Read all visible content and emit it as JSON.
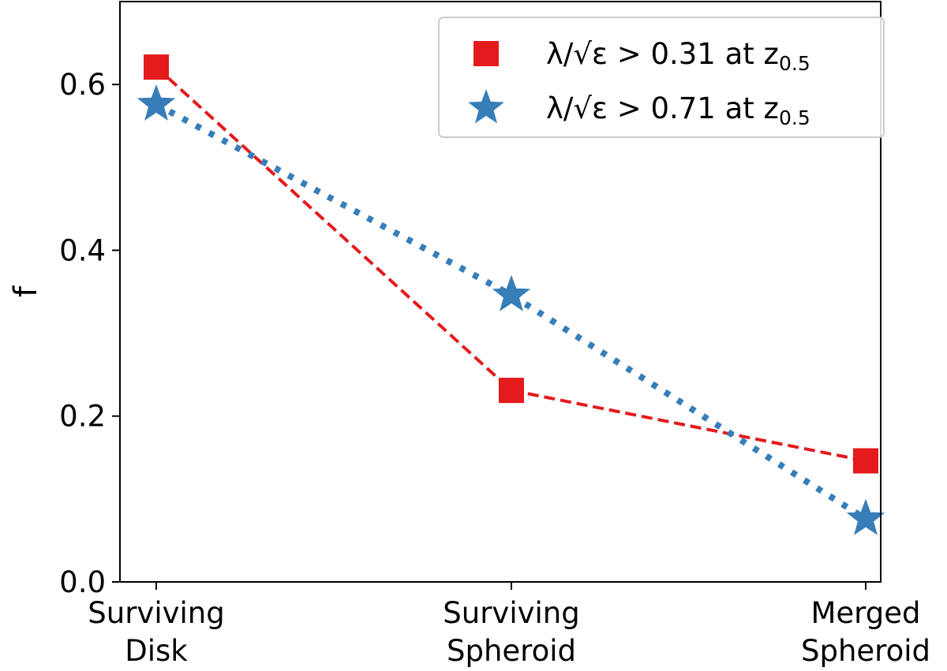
{
  "chart_data": {
    "type": "line",
    "title": "",
    "xlabel": "",
    "ylabel": "f",
    "ylim": [
      0.0,
      0.7
    ],
    "yticks": [
      0.0,
      0.2,
      0.4,
      0.6
    ],
    "ytick_labels": [
      "0.0",
      "0.2",
      "0.4",
      "0.6"
    ],
    "categories": [
      {
        "line1": "Surviving",
        "line2": "Disk"
      },
      {
        "line1": "Surviving",
        "line2": "Spheroid"
      },
      {
        "line1": "Merged",
        "line2": "Spheroid"
      }
    ],
    "series": [
      {
        "name": "λ/√ε > 0.31 at z0.5",
        "legend_main": "λ/√ε > 0.31 at z",
        "legend_sub": "0.5",
        "color": "#e41a1c",
        "marker": "square",
        "linestyle": "dashed",
        "values": [
          0.621,
          0.231,
          0.146
        ]
      },
      {
        "name": "λ/√ε > 0.71 at z0.5",
        "legend_main": "λ/√ε > 0.71 at z",
        "legend_sub": "0.5",
        "color": "#377eb8",
        "marker": "star",
        "linestyle": "dotted",
        "values": [
          0.576,
          0.346,
          0.076
        ]
      }
    ],
    "legend_position": "top-right",
    "grid": false
  }
}
